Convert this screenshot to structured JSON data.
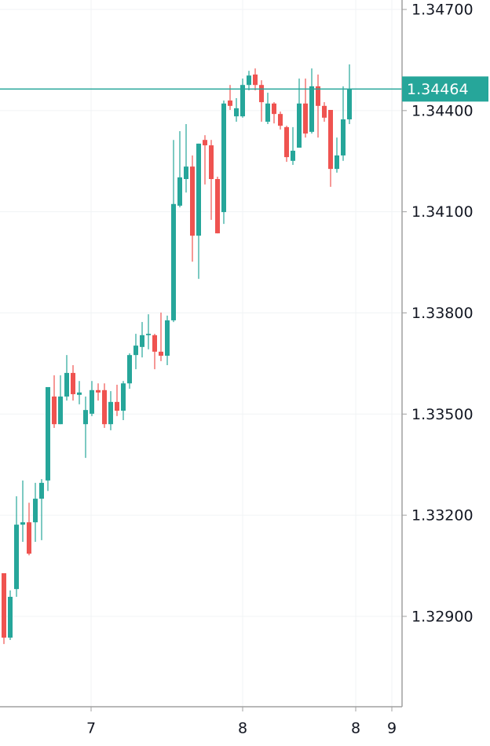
{
  "chart_data": {
    "type": "candlestick",
    "up_color": "#26a69a",
    "down_color": "#ef5350",
    "grid": true,
    "ylim": [
      1.32632,
      1.34728
    ],
    "yticks": [
      {
        "value": 1.347,
        "label": "1.34700"
      },
      {
        "value": 1.344,
        "label": "1.34400"
      },
      {
        "value": 1.341,
        "label": "1.34100"
      },
      {
        "value": 1.338,
        "label": "1.33800"
      },
      {
        "value": 1.335,
        "label": "1.33500"
      },
      {
        "value": 1.332,
        "label": "1.33200"
      },
      {
        "value": 1.329,
        "label": "1.32900"
      }
    ],
    "xlim": [
      -0.625,
      63.375
    ],
    "xticks": [
      {
        "value": 13.875,
        "label": "7"
      },
      {
        "value": 38,
        "label": "8"
      },
      {
        "value": 56,
        "label": "8"
      },
      {
        "value": 61.75,
        "label": "9"
      }
    ],
    "last_price": 1.34464,
    "open": [
      1.33028,
      1.32837,
      1.32981,
      1.33172,
      1.33179,
      1.33179,
      1.33249,
      1.33303,
      1.33552,
      1.3347,
      1.33552,
      1.33622,
      1.33557,
      1.3347,
      1.33501,
      1.33571,
      1.33571,
      1.3347,
      1.33536,
      1.3351,
      1.33591,
      1.33675,
      1.33699,
      1.33734,
      1.33734,
      1.33685,
      1.33673,
      1.33778,
      1.34118,
      1.34197,
      1.34234,
      1.34029,
      1.34313,
      1.34297,
      1.34197,
      1.34099,
      1.3443,
      1.34383,
      1.34383,
      1.34476,
      1.34507,
      1.34476,
      1.34367,
      1.34421,
      1.3439,
      1.34351,
      1.34251,
      1.3429,
      1.34421,
      1.34337,
      1.34472,
      1.34414,
      1.34402,
      1.34227,
      1.34267,
      1.34374
    ],
    "high": [
      1.33028,
      1.32977,
      1.33256,
      1.33303,
      1.33237,
      1.33296,
      1.33307,
      1.3358,
      1.33615,
      1.33615,
      1.33675,
      1.33645,
      1.33598,
      1.33552,
      1.33598,
      1.33591,
      1.33591,
      1.33568,
      1.33587,
      1.33598,
      1.3368,
      1.33738,
      1.33773,
      1.33796,
      1.33738,
      1.33801,
      1.33792,
      1.34313,
      1.34339,
      1.3436,
      1.34267,
      1.34302,
      1.34327,
      1.34313,
      1.34204,
      1.3443,
      1.34476,
      1.34437,
      1.34495,
      1.34518,
      1.34525,
      1.3449,
      1.34453,
      1.34425,
      1.34397,
      1.34355,
      1.34351,
      1.34495,
      1.34495,
      1.34525,
      1.34507,
      1.34425,
      1.34402,
      1.3432,
      1.34472,
      1.34537
    ],
    "low": [
      1.32818,
      1.3283,
      1.32958,
      1.33121,
      1.33081,
      1.33121,
      1.33126,
      1.33272,
      1.33459,
      1.3347,
      1.3354,
      1.3354,
      1.33529,
      1.3337,
      1.33494,
      1.3354,
      1.33459,
      1.33452,
      1.33494,
      1.33482,
      1.33575,
      1.33633,
      1.33668,
      1.33692,
      1.33633,
      1.33657,
      1.33645,
      1.33773,
      1.34113,
      1.34157,
      1.33952,
      1.33901,
      1.34181,
      1.34076,
      1.34036,
      1.34064,
      1.34402,
      1.34367,
      1.34379,
      1.3446,
      1.3446,
      1.34367,
      1.3436,
      1.34362,
      1.34344,
      1.34248,
      1.34239,
      1.3429,
      1.3432,
      1.34332,
      1.3432,
      1.34367,
      1.34174,
      1.34216,
      1.34251,
      1.3436
    ],
    "close": [
      1.32837,
      1.32958,
      1.33172,
      1.33179,
      1.33086,
      1.33249,
      1.33296,
      1.3358,
      1.3347,
      1.33552,
      1.33622,
      1.33559,
      1.33564,
      1.33512,
      1.33571,
      1.33564,
      1.3347,
      1.33536,
      1.3351,
      1.33591,
      1.33675,
      1.33703,
      1.33734,
      1.33738,
      1.33685,
      1.33673,
      1.33778,
      1.34123,
      1.34202,
      1.34234,
      1.34029,
      1.34302,
      1.34297,
      1.34197,
      1.34036,
      1.34421,
      1.34414,
      1.34407,
      1.34476,
      1.34504,
      1.34476,
      1.34425,
      1.34421,
      1.3439,
      1.34355,
      1.34262,
      1.34281,
      1.34421,
      1.34332,
      1.34472,
      1.34414,
      1.34379,
      1.34227,
      1.34267,
      1.34374,
      1.34464
    ]
  }
}
